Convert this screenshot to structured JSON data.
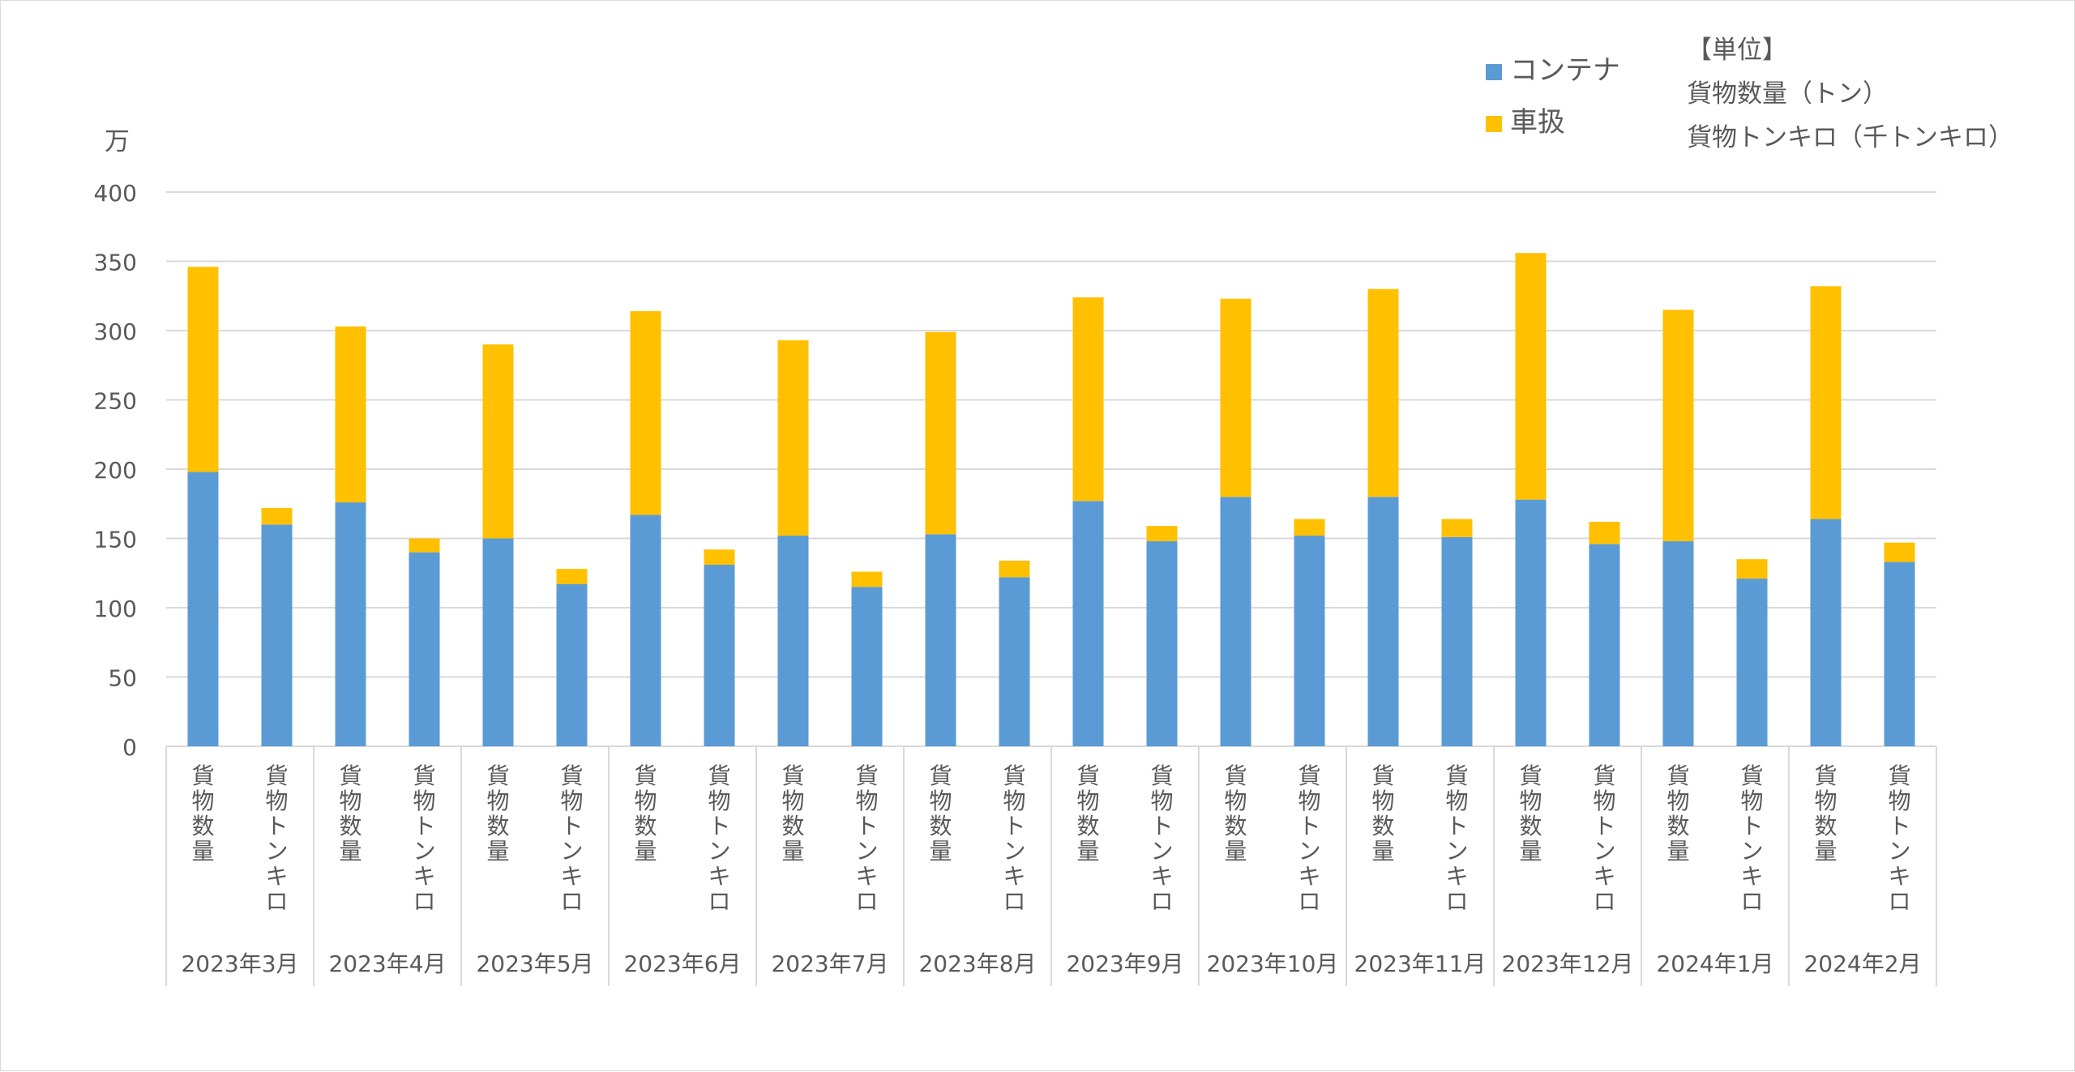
{
  "chart_data": {
    "type": "bar",
    "stacked": true,
    "y_unit_label": "万",
    "ylim": [
      0,
      400
    ],
    "yticks": [
      0,
      50,
      100,
      150,
      200,
      250,
      300,
      350,
      400
    ],
    "grid": true,
    "legend_position": "top-right",
    "subcategory_labels": [
      "貨物数量",
      "貨物トンキロ"
    ],
    "groups": [
      "2023年3月",
      "2023年4月",
      "2023年5月",
      "2023年6月",
      "2023年7月",
      "2023年8月",
      "2023年9月",
      "2023年10月",
      "2023年11月",
      "2023年12月",
      "2024年1月",
      "2024年2月"
    ],
    "series": [
      {
        "name": "コンテナ",
        "color": "#5b9bd5",
        "values": [
          [
            198,
            160
          ],
          [
            176,
            140
          ],
          [
            150,
            117
          ],
          [
            167,
            131
          ],
          [
            152,
            115
          ],
          [
            153,
            122
          ],
          [
            177,
            148
          ],
          [
            180,
            152
          ],
          [
            180,
            151
          ],
          [
            178,
            146
          ],
          [
            148,
            121
          ],
          [
            164,
            133
          ]
        ]
      },
      {
        "name": "車扱",
        "color": "#ffc000",
        "values": [
          [
            148,
            12
          ],
          [
            127,
            10
          ],
          [
            140,
            11
          ],
          [
            147,
            11
          ],
          [
            141,
            11
          ],
          [
            146,
            12
          ],
          [
            147,
            11
          ],
          [
            143,
            12
          ],
          [
            150,
            13
          ],
          [
            178,
            16
          ],
          [
            167,
            14
          ],
          [
            168,
            14
          ]
        ]
      }
    ],
    "unit_note": {
      "title": "【単位】",
      "lines": [
        "貨物数量（トン）",
        "貨物トンキロ（千トンキロ）"
      ]
    }
  }
}
